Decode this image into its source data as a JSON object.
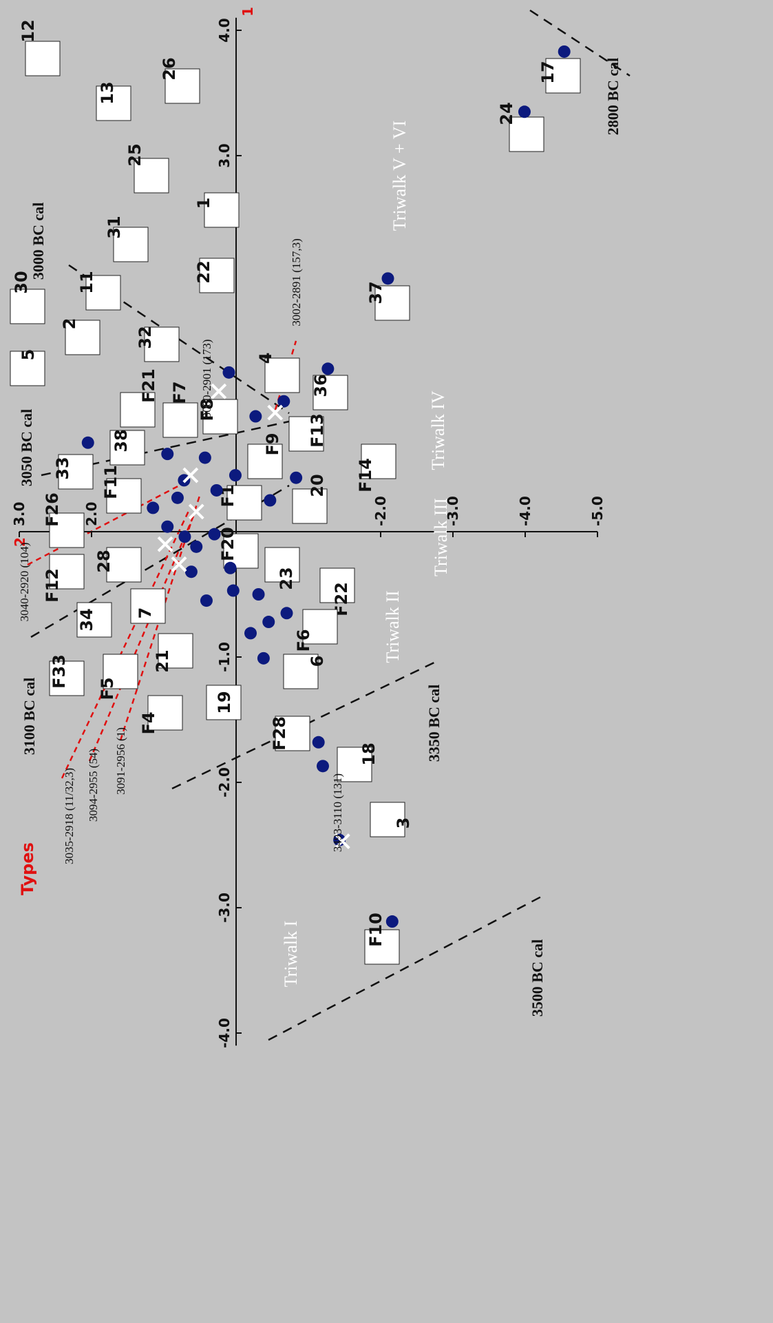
{
  "chart_data": {
    "type": "scatter",
    "title": "Types",
    "xlabel": "1",
    "ylabel": "2",
    "xlim": [
      -4.1,
      4.1
    ],
    "ylim": [
      -5,
      3
    ],
    "xticks": [
      {
        "value": -4,
        "label": "-4.0"
      },
      {
        "value": -3,
        "label": "-3.0"
      },
      {
        "value": -2,
        "label": "-2.0"
      },
      {
        "value": -1,
        "label": "-1.0"
      },
      {
        "value": 3,
        "label": "3.0"
      },
      {
        "value": 4,
        "label": "4.0"
      }
    ],
    "yticks": [
      {
        "value": 3,
        "label": "3.0"
      },
      {
        "value": 2,
        "label": "2.0"
      },
      {
        "value": -2,
        "label": "-2.0"
      },
      {
        "value": -3,
        "label": "-3.0"
      },
      {
        "value": -4,
        "label": "-4.0"
      },
      {
        "value": -5,
        "label": "-5.0"
      }
    ],
    "series": [
      {
        "color": "#0c1a7e",
        "x": [
          3.83,
          3.35,
          2.02,
          1.3,
          1.27,
          1.04,
          0.92,
          0.71,
          0.62,
          0.59,
          0.45,
          0.43,
          0.41,
          0.33,
          0.27,
          0.25,
          0.19,
          0.04,
          -0.04,
          -0.12,
          -0.02,
          -0.29,
          -0.32,
          -0.47,
          -0.5,
          -0.65,
          -0.55,
          -0.72,
          -0.81,
          -1.01,
          -1.68,
          -1.87,
          -2.46,
          -3.11
        ],
        "values": [
          -4.54,
          -3.99,
          -2.1,
          -1.27,
          0.1,
          -0.66,
          -0.27,
          2.05,
          0.95,
          0.43,
          0.01,
          -0.83,
          0.72,
          0.27,
          0.81,
          -0.47,
          1.15,
          0.95,
          0.71,
          0.55,
          0.3,
          0.08,
          0.62,
          0.04,
          -0.31,
          -0.7,
          0.41,
          -0.45,
          -0.2,
          -0.38,
          -1.14,
          -1.2,
          -1.43,
          -2.16
        ]
      },
      {
        "color": "#ffffff",
        "marker": "x",
        "x": [
          1.12,
          0.95,
          0.45,
          0.16,
          -0.1,
          -0.26,
          -2.47
        ],
        "values": [
          0.24,
          -0.54,
          0.63,
          0.55,
          0.98,
          0.79,
          -1.47
        ]
      }
    ],
    "periods": [
      "Triwalk I",
      "Triwalk II",
      "Triwalk III",
      "Triwalk IV",
      "Triwalk V + VI"
    ],
    "boundaries": [
      "3500 BC cal",
      "3350 BC cal",
      "3100 BC cal",
      "3050 BC cal",
      "3000 BC cal",
      "2800 BC cal"
    ],
    "dates": [
      "3040-2920 (104)",
      "3035-2918 (11/32,3)",
      "3094-2955 (54)",
      "3091-2956 (1)",
      "3493-3110 (131)",
      "3000-2901 (173)",
      "3002-2891 (157,3)"
    ],
    "types": [
      "12",
      "13",
      "26",
      "25",
      "1",
      "31",
      "22",
      "30",
      "11",
      "2",
      "32",
      "4",
      "5",
      "36",
      "F21",
      "F7",
      "F8",
      "F13",
      "F9",
      "38",
      "33",
      "F11",
      "F14",
      "20",
      "F1",
      "F26",
      "F20",
      "28",
      "F12",
      "23",
      "34",
      "7",
      "F22",
      "F6",
      "21",
      "F33",
      "6",
      "F5",
      "19",
      "F4",
      "F28",
      "18",
      "3",
      "F10",
      "24",
      "17",
      "37"
    ]
  }
}
